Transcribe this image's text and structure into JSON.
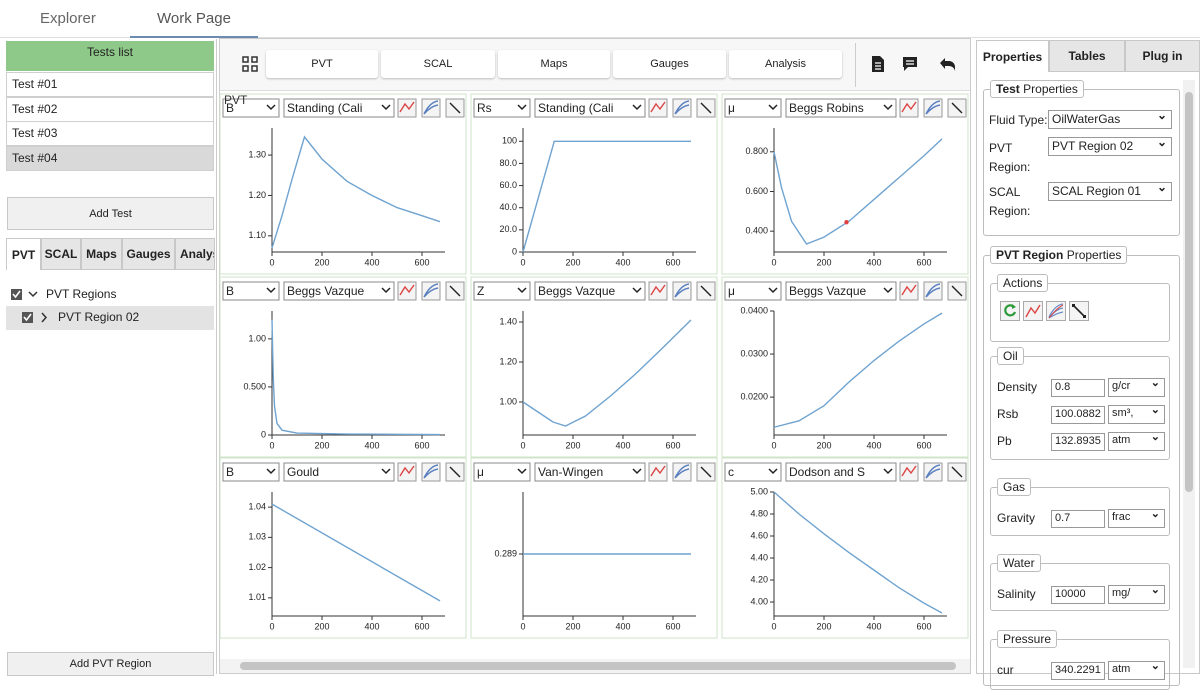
{
  "top_tabs": [
    "Explorer",
    "Work Page"
  ],
  "left": {
    "tests_header": "Tests list",
    "tests": [
      "Test #01",
      "Test #02",
      "Test #03",
      "Test #04"
    ],
    "add_test": "Add Test",
    "tabs": [
      "PVT",
      "SCAL",
      "Maps",
      "Gauges",
      "Analys"
    ],
    "tree": [
      "PVT Regions",
      "PVT Region 02"
    ],
    "add_region": "Add PVT Region"
  },
  "toolbar": [
    "PVT",
    "SCAL",
    "Maps",
    "Gauges",
    "Analysis"
  ],
  "section_label": "PVT",
  "plots": [
    {
      "property": "B",
      "method": "Standing (Cali",
      "xlim": [
        0,
        692
      ],
      "ylim": [
        1.06,
        1.367
      ],
      "xticks": [
        0,
        200,
        400,
        600
      ],
      "yticks": [
        {
          "value": 1.1,
          "label": "1.10"
        },
        {
          "value": 1.2,
          "label": "1.20"
        },
        {
          "value": 1.3,
          "label": "1.30"
        }
      ],
      "x": [
        0,
        40,
        80,
        130,
        200,
        300,
        400,
        500,
        600,
        672
      ],
      "y": [
        1.07,
        1.15,
        1.24,
        1.345,
        1.29,
        1.235,
        1.2,
        1.17,
        1.15,
        1.135
      ]
    },
    {
      "property": "Rs",
      "method": "Standing (Cali",
      "xlim": [
        0,
        692
      ],
      "ylim": [
        0,
        112
      ],
      "xticks": [
        0,
        200,
        400,
        600
      ],
      "yticks": [
        0,
        {
          "value": 20,
          "label": "20.0"
        },
        {
          "value": 40,
          "label": "40.0"
        },
        {
          "value": 60,
          "label": "60.0"
        },
        {
          "value": 80,
          "label": "80.0"
        },
        100
      ],
      "x": [
        0,
        125,
        672
      ],
      "y": [
        0,
        100,
        100
      ]
    },
    {
      "property": "μ",
      "method": "Beggs Robins",
      "xlim": [
        0,
        692
      ],
      "ylim": [
        0.295,
        0.92
      ],
      "xticks": [
        0,
        200,
        400,
        600
      ],
      "yticks": [
        {
          "value": 0.4,
          "label": "0.400"
        },
        {
          "value": 0.6,
          "label": "0.600"
        },
        {
          "value": 0.8,
          "label": "0.800"
        }
      ],
      "x": [
        0,
        30,
        70,
        130,
        200,
        300,
        400,
        500,
        600,
        672
      ],
      "y": [
        0.8,
        0.62,
        0.45,
        0.335,
        0.37,
        0.45,
        0.56,
        0.67,
        0.78,
        0.865
      ],
      "marker": {
        "x": 290,
        "y": 0.445
      }
    },
    {
      "property": "B",
      "method": "Beggs Vazque",
      "xlim": [
        0,
        692
      ],
      "ylim": [
        0,
        1.29
      ],
      "xticks": [
        0,
        200,
        400,
        600
      ],
      "yticks": [
        0,
        {
          "value": 0.5,
          "label": "0.500"
        },
        {
          "value": 1,
          "label": "1.00"
        }
      ],
      "x": [
        0,
        5,
        10,
        20,
        40,
        100,
        300,
        672
      ],
      "y": [
        1.2,
        0.6,
        0.3,
        0.12,
        0.05,
        0.02,
        0.01,
        0.005
      ]
    },
    {
      "property": "Z",
      "method": "Beggs Vazque",
      "xlim": [
        0,
        692
      ],
      "ylim": [
        0.835,
        1.455
      ],
      "xticks": [
        0,
        200,
        400,
        600
      ],
      "yticks": [
        {
          "value": 1,
          "label": "1.00"
        },
        {
          "value": 1.2,
          "label": "1.20"
        },
        {
          "value": 1.4,
          "label": "1.40"
        }
      ],
      "x": [
        0,
        60,
        120,
        170,
        250,
        350,
        450,
        550,
        672
      ],
      "y": [
        1.0,
        0.95,
        0.9,
        0.88,
        0.93,
        1.03,
        1.14,
        1.26,
        1.41
      ]
    },
    {
      "property": "μ",
      "method": "Beggs Vazque",
      "xlim": [
        0,
        692
      ],
      "ylim": [
        0.0112,
        0.04
      ],
      "xticks": [
        0,
        200,
        400,
        600
      ],
      "yticks": [
        {
          "value": 0.02,
          "label": "0.0200"
        },
        {
          "value": 0.03,
          "label": "0.0300"
        },
        {
          "value": 0.04,
          "label": "0.0400"
        }
      ],
      "x": [
        0,
        100,
        200,
        300,
        400,
        500,
        600,
        672
      ],
      "y": [
        0.013,
        0.0145,
        0.018,
        0.0235,
        0.0285,
        0.033,
        0.037,
        0.0395
      ]
    },
    {
      "property": "B",
      "method": "Gould",
      "xlim": [
        0,
        692
      ],
      "ylim": [
        1.004,
        1.045
      ],
      "xticks": [
        0,
        200,
        400,
        600
      ],
      "yticks": [
        1.01,
        1.02,
        1.03,
        1.04
      ],
      "x": [
        0,
        672
      ],
      "y": [
        1.041,
        1.009
      ]
    },
    {
      "property": "μ",
      "method": "Van-Wingen",
      "xlim": [
        0,
        692
      ],
      "ylim": [
        0.28,
        0.298
      ],
      "xticks": [
        0,
        200,
        400,
        600
      ],
      "yticks": [
        0.289
      ],
      "x": [
        0,
        672
      ],
      "y": [
        0.289,
        0.289
      ]
    },
    {
      "property": "c",
      "method": "Dodson and S",
      "xlim": [
        0,
        692
      ],
      "ylim": [
        3.873,
        5.0
      ],
      "xticks": [
        0,
        200,
        400,
        600
      ],
      "yticks": [
        {
          "value": 4,
          "label": "4.00"
        },
        {
          "value": 4.2,
          "label": "4.20"
        },
        {
          "value": 4.4,
          "label": "4.40"
        },
        {
          "value": 4.6,
          "label": "4.60"
        },
        {
          "value": 4.8,
          "label": "4.80"
        },
        {
          "value": 5,
          "label": "5.00"
        }
      ],
      "x": [
        0,
        100,
        200,
        300,
        400,
        500,
        600,
        672
      ],
      "y": [
        5.0,
        4.8,
        4.62,
        4.45,
        4.29,
        4.13,
        3.99,
        3.9
      ]
    }
  ],
  "right": {
    "tabs": [
      "Properties",
      "Tables",
      "Plug in"
    ],
    "test_legend": {
      "bold": "Test",
      "rest": "Properties"
    },
    "fluid_type": {
      "label": "Fluid Type:",
      "value": "OilWaterGas"
    },
    "pvt_region": {
      "label": "PVT Region:",
      "value": "PVT Region 02"
    },
    "scal_region": {
      "label": "SCAL Region:",
      "value": "SCAL Region 01"
    },
    "region_legend": {
      "bold": "PVT Region",
      "rest": "Properties"
    },
    "actions": "Actions",
    "oil": {
      "title": "Oil",
      "rows": [
        {
          "label": "Density",
          "value": "0.8",
          "unit": "g/cr"
        },
        {
          "label": "Rsb",
          "value": "100.0882",
          "unit": "sm³,"
        },
        {
          "label": "Pb",
          "value": "132.8935",
          "unit": "atm"
        }
      ]
    },
    "gas": {
      "title": "Gas",
      "rows": [
        {
          "label": "Gravity",
          "value": "0.7",
          "unit": "frac"
        }
      ]
    },
    "water": {
      "title": "Water",
      "rows": [
        {
          "label": "Salinity",
          "value": "10000",
          "unit": "mg/"
        }
      ]
    },
    "pressure": {
      "title": "Pressure",
      "rows": [
        {
          "label": "cur",
          "value": "340.2291",
          "unit": "atm"
        }
      ]
    }
  }
}
